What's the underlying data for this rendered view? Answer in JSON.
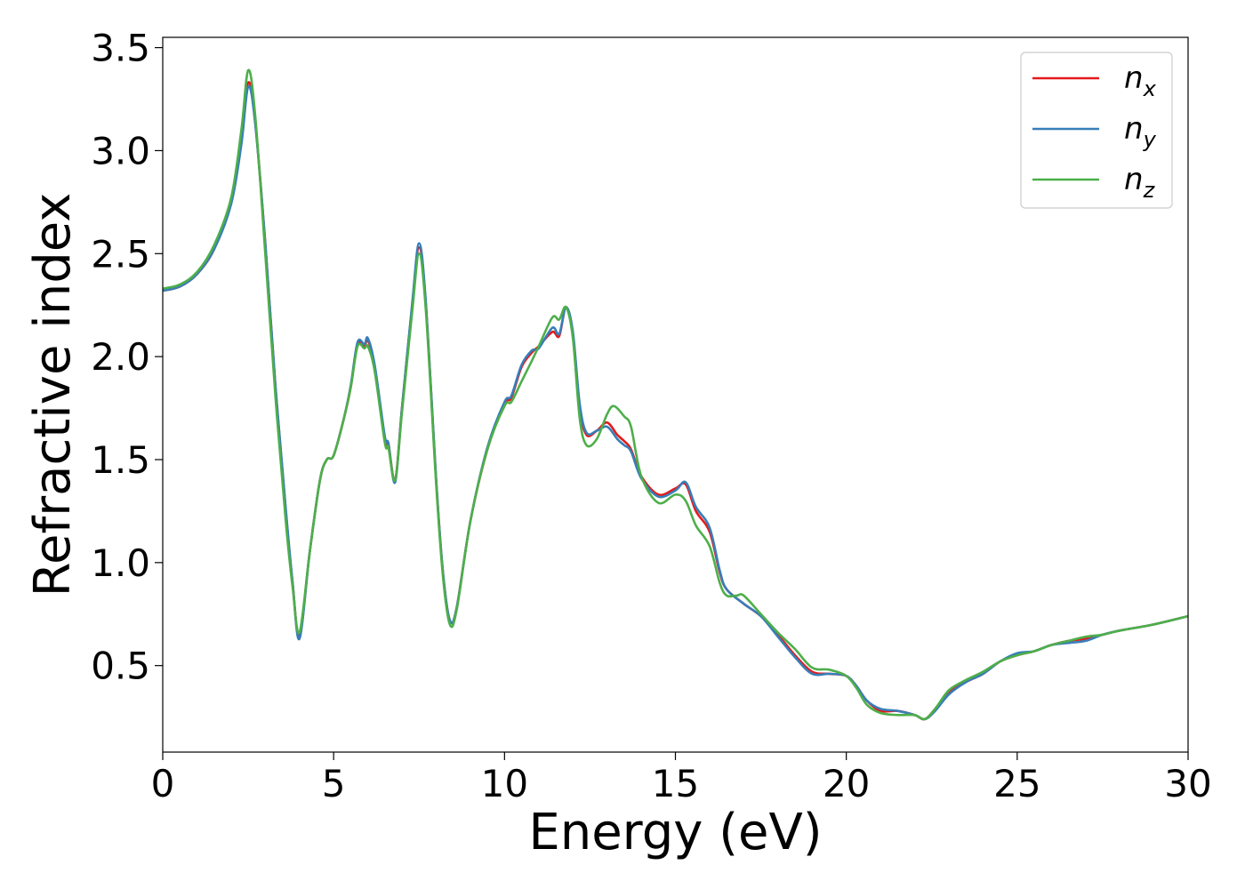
{
  "chart_data": {
    "type": "line",
    "xlabel": "Energy (eV)",
    "ylabel": "Refractive index",
    "xlim": [
      0,
      30
    ],
    "ylim": [
      0.08,
      3.55
    ],
    "xticks": [
      0,
      5,
      10,
      15,
      20,
      25,
      30
    ],
    "xtick_labels": [
      "0",
      "5",
      "10",
      "15",
      "20",
      "25",
      "30"
    ],
    "yticks": [
      0.5,
      1.0,
      1.5,
      2.0,
      2.5,
      3.0,
      3.5
    ],
    "ytick_labels": [
      "0.5",
      "1.0",
      "1.5",
      "2.0",
      "2.5",
      "3.0",
      "3.5"
    ],
    "grid": false,
    "legend_position": "top-right",
    "series": [
      {
        "name": "n_x",
        "label_main": "n",
        "label_sub": "x",
        "color": "#e41a1c",
        "points": [
          [
            0,
            2.32
          ],
          [
            0.5,
            2.34
          ],
          [
            1.0,
            2.4
          ],
          [
            1.5,
            2.52
          ],
          [
            2.0,
            2.75
          ],
          [
            2.3,
            3.05
          ],
          [
            2.5,
            3.33
          ],
          [
            2.7,
            3.15
          ],
          [
            3.0,
            2.55
          ],
          [
            3.3,
            1.85
          ],
          [
            3.6,
            1.25
          ],
          [
            3.8,
            0.9
          ],
          [
            4.0,
            0.64
          ],
          [
            4.3,
            1.05
          ],
          [
            4.6,
            1.4
          ],
          [
            4.8,
            1.5
          ],
          [
            5.0,
            1.52
          ],
          [
            5.3,
            1.7
          ],
          [
            5.5,
            1.85
          ],
          [
            5.7,
            2.06
          ],
          [
            5.9,
            2.05
          ],
          [
            6.0,
            2.08
          ],
          [
            6.2,
            1.95
          ],
          [
            6.5,
            1.6
          ],
          [
            6.6,
            1.58
          ],
          [
            6.8,
            1.4
          ],
          [
            7.0,
            1.75
          ],
          [
            7.3,
            2.25
          ],
          [
            7.5,
            2.53
          ],
          [
            7.7,
            2.25
          ],
          [
            8.0,
            1.4
          ],
          [
            8.2,
            0.95
          ],
          [
            8.4,
            0.72
          ],
          [
            8.6,
            0.78
          ],
          [
            9.0,
            1.2
          ],
          [
            9.5,
            1.55
          ],
          [
            10.0,
            1.77
          ],
          [
            10.2,
            1.8
          ],
          [
            10.5,
            1.95
          ],
          [
            10.8,
            2.02
          ],
          [
            11.0,
            2.05
          ],
          [
            11.4,
            2.12
          ],
          [
            11.6,
            2.1
          ],
          [
            11.8,
            2.24
          ],
          [
            12.0,
            2.1
          ],
          [
            12.2,
            1.75
          ],
          [
            12.4,
            1.62
          ],
          [
            12.7,
            1.64
          ],
          [
            13.0,
            1.68
          ],
          [
            13.3,
            1.62
          ],
          [
            13.5,
            1.59
          ],
          [
            13.7,
            1.55
          ],
          [
            14.0,
            1.42
          ],
          [
            14.5,
            1.33
          ],
          [
            15.0,
            1.36
          ],
          [
            15.3,
            1.38
          ],
          [
            15.6,
            1.25
          ],
          [
            16.0,
            1.15
          ],
          [
            16.3,
            0.95
          ],
          [
            16.5,
            0.87
          ],
          [
            17.0,
            0.8
          ],
          [
            17.5,
            0.74
          ],
          [
            18.0,
            0.65
          ],
          [
            18.5,
            0.55
          ],
          [
            19.0,
            0.47
          ],
          [
            19.5,
            0.46
          ],
          [
            20.0,
            0.45
          ],
          [
            20.3,
            0.4
          ],
          [
            20.6,
            0.33
          ],
          [
            21.0,
            0.28
          ],
          [
            21.5,
            0.28
          ],
          [
            22.0,
            0.26
          ],
          [
            22.3,
            0.24
          ],
          [
            22.6,
            0.29
          ],
          [
            23.0,
            0.37
          ],
          [
            23.5,
            0.42
          ],
          [
            24.0,
            0.46
          ],
          [
            24.5,
            0.52
          ],
          [
            25.0,
            0.55
          ],
          [
            25.5,
            0.57
          ],
          [
            26.0,
            0.6
          ],
          [
            26.5,
            0.62
          ],
          [
            27.0,
            0.63
          ],
          [
            27.5,
            0.65
          ],
          [
            28.0,
            0.67
          ],
          [
            29.0,
            0.7
          ],
          [
            30.0,
            0.74
          ]
        ]
      },
      {
        "name": "n_y",
        "label_main": "n",
        "label_sub": "y",
        "color": "#377eb8",
        "points": [
          [
            0,
            2.32
          ],
          [
            0.5,
            2.34
          ],
          [
            1.0,
            2.4
          ],
          [
            1.5,
            2.52
          ],
          [
            2.0,
            2.74
          ],
          [
            2.3,
            3.03
          ],
          [
            2.5,
            3.31
          ],
          [
            2.7,
            3.14
          ],
          [
            3.0,
            2.55
          ],
          [
            3.3,
            1.85
          ],
          [
            3.6,
            1.26
          ],
          [
            3.8,
            0.9
          ],
          [
            4.0,
            0.63
          ],
          [
            4.3,
            1.05
          ],
          [
            4.6,
            1.4
          ],
          [
            4.8,
            1.5
          ],
          [
            5.0,
            1.52
          ],
          [
            5.3,
            1.7
          ],
          [
            5.5,
            1.86
          ],
          [
            5.7,
            2.07
          ],
          [
            5.9,
            2.06
          ],
          [
            6.0,
            2.09
          ],
          [
            6.2,
            1.96
          ],
          [
            6.5,
            1.61
          ],
          [
            6.6,
            1.58
          ],
          [
            6.8,
            1.39
          ],
          [
            7.0,
            1.75
          ],
          [
            7.3,
            2.26
          ],
          [
            7.5,
            2.55
          ],
          [
            7.7,
            2.26
          ],
          [
            8.0,
            1.4
          ],
          [
            8.2,
            0.95
          ],
          [
            8.4,
            0.72
          ],
          [
            8.6,
            0.78
          ],
          [
            9.0,
            1.2
          ],
          [
            9.5,
            1.56
          ],
          [
            10.0,
            1.78
          ],
          [
            10.2,
            1.81
          ],
          [
            10.5,
            1.96
          ],
          [
            10.8,
            2.03
          ],
          [
            11.0,
            2.04
          ],
          [
            11.4,
            2.14
          ],
          [
            11.6,
            2.11
          ],
          [
            11.8,
            2.24
          ],
          [
            12.0,
            2.12
          ],
          [
            12.2,
            1.77
          ],
          [
            12.4,
            1.63
          ],
          [
            12.7,
            1.64
          ],
          [
            13.0,
            1.66
          ],
          [
            13.3,
            1.6
          ],
          [
            13.5,
            1.57
          ],
          [
            13.7,
            1.54
          ],
          [
            14.0,
            1.41
          ],
          [
            14.5,
            1.32
          ],
          [
            15.0,
            1.35
          ],
          [
            15.3,
            1.39
          ],
          [
            15.6,
            1.27
          ],
          [
            16.0,
            1.17
          ],
          [
            16.3,
            0.96
          ],
          [
            16.5,
            0.87
          ],
          [
            17.0,
            0.8
          ],
          [
            17.5,
            0.74
          ],
          [
            18.0,
            0.64
          ],
          [
            18.5,
            0.54
          ],
          [
            19.0,
            0.46
          ],
          [
            19.5,
            0.46
          ],
          [
            20.0,
            0.45
          ],
          [
            20.3,
            0.4
          ],
          [
            20.6,
            0.33
          ],
          [
            21.0,
            0.29
          ],
          [
            21.5,
            0.28
          ],
          [
            22.0,
            0.26
          ],
          [
            22.3,
            0.24
          ],
          [
            22.6,
            0.28
          ],
          [
            23.0,
            0.36
          ],
          [
            23.5,
            0.42
          ],
          [
            24.0,
            0.46
          ],
          [
            24.5,
            0.52
          ],
          [
            25.0,
            0.56
          ],
          [
            25.5,
            0.57
          ],
          [
            26.0,
            0.6
          ],
          [
            26.5,
            0.61
          ],
          [
            27.0,
            0.62
          ],
          [
            27.5,
            0.65
          ],
          [
            28.0,
            0.67
          ],
          [
            29.0,
            0.7
          ],
          [
            30.0,
            0.74
          ]
        ]
      },
      {
        "name": "n_z",
        "label_main": "n",
        "label_sub": "z",
        "color": "#4daf4a",
        "points": [
          [
            0,
            2.33
          ],
          [
            0.5,
            2.35
          ],
          [
            1.0,
            2.41
          ],
          [
            1.5,
            2.54
          ],
          [
            2.0,
            2.77
          ],
          [
            2.3,
            3.1
          ],
          [
            2.5,
            3.39
          ],
          [
            2.7,
            3.18
          ],
          [
            3.0,
            2.5
          ],
          [
            3.3,
            1.8
          ],
          [
            3.6,
            1.2
          ],
          [
            3.8,
            0.88
          ],
          [
            4.0,
            0.66
          ],
          [
            4.3,
            1.05
          ],
          [
            4.6,
            1.4
          ],
          [
            4.8,
            1.5
          ],
          [
            5.0,
            1.52
          ],
          [
            5.3,
            1.7
          ],
          [
            5.5,
            1.85
          ],
          [
            5.7,
            2.05
          ],
          [
            5.9,
            2.04
          ],
          [
            6.0,
            2.05
          ],
          [
            6.2,
            1.93
          ],
          [
            6.5,
            1.58
          ],
          [
            6.6,
            1.56
          ],
          [
            6.8,
            1.4
          ],
          [
            7.0,
            1.73
          ],
          [
            7.3,
            2.22
          ],
          [
            7.5,
            2.5
          ],
          [
            7.7,
            2.22
          ],
          [
            8.0,
            1.38
          ],
          [
            8.2,
            0.93
          ],
          [
            8.4,
            0.7
          ],
          [
            8.6,
            0.77
          ],
          [
            9.0,
            1.2
          ],
          [
            9.5,
            1.55
          ],
          [
            10.0,
            1.76
          ],
          [
            10.2,
            1.78
          ],
          [
            10.5,
            1.88
          ],
          [
            10.8,
            1.98
          ],
          [
            11.0,
            2.05
          ],
          [
            11.4,
            2.19
          ],
          [
            11.6,
            2.18
          ],
          [
            11.8,
            2.24
          ],
          [
            12.0,
            2.09
          ],
          [
            12.2,
            1.7
          ],
          [
            12.4,
            1.57
          ],
          [
            12.7,
            1.6
          ],
          [
            13.0,
            1.72
          ],
          [
            13.2,
            1.76
          ],
          [
            13.5,
            1.71
          ],
          [
            13.7,
            1.66
          ],
          [
            14.0,
            1.42
          ],
          [
            14.5,
            1.29
          ],
          [
            15.0,
            1.33
          ],
          [
            15.3,
            1.3
          ],
          [
            15.6,
            1.18
          ],
          [
            16.0,
            1.08
          ],
          [
            16.3,
            0.9
          ],
          [
            16.5,
            0.84
          ],
          [
            16.8,
            0.84
          ],
          [
            17.0,
            0.84
          ],
          [
            17.5,
            0.75
          ],
          [
            18.0,
            0.66
          ],
          [
            18.5,
            0.58
          ],
          [
            19.0,
            0.49
          ],
          [
            19.5,
            0.48
          ],
          [
            20.0,
            0.45
          ],
          [
            20.3,
            0.39
          ],
          [
            20.6,
            0.31
          ],
          [
            21.0,
            0.27
          ],
          [
            21.5,
            0.26
          ],
          [
            22.0,
            0.26
          ],
          [
            22.3,
            0.24
          ],
          [
            22.6,
            0.29
          ],
          [
            23.0,
            0.38
          ],
          [
            23.5,
            0.43
          ],
          [
            24.0,
            0.47
          ],
          [
            24.5,
            0.52
          ],
          [
            25.0,
            0.55
          ],
          [
            25.5,
            0.57
          ],
          [
            26.0,
            0.6
          ],
          [
            26.5,
            0.62
          ],
          [
            27.0,
            0.64
          ],
          [
            27.5,
            0.65
          ],
          [
            28.0,
            0.67
          ],
          [
            29.0,
            0.7
          ],
          [
            30.0,
            0.74
          ]
        ]
      }
    ]
  }
}
